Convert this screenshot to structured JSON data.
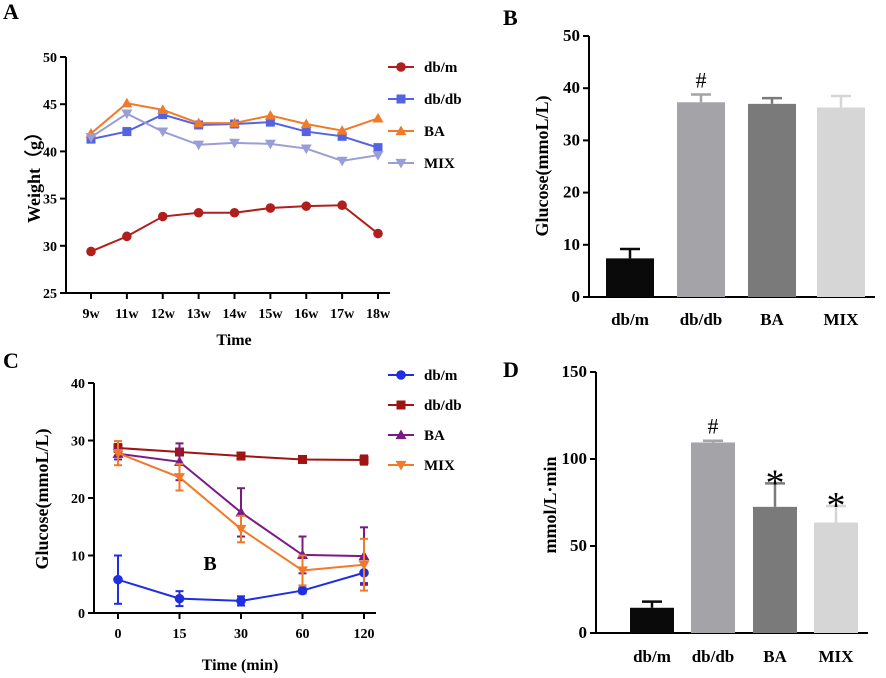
{
  "chart_data": [
    {
      "panel": "A",
      "type": "line",
      "xlabel": "Time",
      "ylabel": "Weight（g）",
      "ylim": [
        25,
        50
      ],
      "yticks": [
        25,
        30,
        35,
        40,
        45,
        50
      ],
      "categories": [
        "9w",
        "11w",
        "12w",
        "13w",
        "14w",
        "15w",
        "16w",
        "17w",
        "18w"
      ],
      "legend_position": "right",
      "series": [
        {
          "name": "db/m",
          "color": "#b01e1e",
          "marker": "circle",
          "values": [
            29.4,
            31.0,
            33.1,
            33.5,
            33.5,
            34.0,
            34.2,
            34.3,
            31.3
          ]
        },
        {
          "name": "db/db",
          "color": "#5463e3",
          "marker": "square",
          "values": [
            41.3,
            42.1,
            43.9,
            42.8,
            42.9,
            43.1,
            42.1,
            41.6,
            40.4
          ]
        },
        {
          "name": "BA",
          "color": "#f07a2a",
          "marker": "triangle-up",
          "values": [
            41.9,
            45.1,
            44.4,
            43.0,
            43.0,
            43.8,
            42.9,
            42.2,
            43.5
          ]
        },
        {
          "name": "MIX",
          "color": "#9a9ed6",
          "marker": "triangle-down",
          "values": [
            41.5,
            44.0,
            42.1,
            40.7,
            40.9,
            40.8,
            40.3,
            39.0,
            39.6
          ]
        }
      ]
    },
    {
      "panel": "B",
      "type": "bar",
      "ylabel": "Glucose(mmoL/L)",
      "ylim": [
        0,
        50
      ],
      "yticks": [
        0,
        10,
        20,
        30,
        40,
        50
      ],
      "categories": [
        "db/m",
        "db/db",
        "BA",
        "MIX"
      ],
      "values": [
        7.4,
        37.3,
        37.0,
        36.3
      ],
      "errors": [
        1.8,
        1.5,
        1.1,
        2.2
      ],
      "colors": [
        "#0a0a0a",
        "#a3a3a8",
        "#7a7a7a",
        "#d6d6d6"
      ],
      "annotations": [
        "",
        "#",
        "",
        ""
      ]
    },
    {
      "panel": "C",
      "type": "line",
      "xlabel": "Time (min)",
      "ylabel": "Glucose(mmoL/L)",
      "ylim": [
        0,
        40
      ],
      "yticks": [
        0,
        10,
        20,
        30,
        40
      ],
      "categories": [
        "0",
        "15",
        "30",
        "60",
        "120"
      ],
      "legend_position": "right",
      "inset_label": "B",
      "series": [
        {
          "name": "db/m",
          "color": "#1f2fe0",
          "marker": "circle",
          "values": [
            5.8,
            2.5,
            2.1,
            3.9,
            7.0
          ],
          "errors": [
            4.2,
            1.3,
            0.8,
            0.5,
            1.8
          ]
        },
        {
          "name": "db/db",
          "color": "#a11414",
          "marker": "square",
          "values": [
            28.7,
            28.0,
            27.3,
            26.7,
            26.6
          ],
          "errors": [
            0.7,
            0.6,
            0.5,
            0.5,
            0.8
          ]
        },
        {
          "name": "BA",
          "color": "#7a1a84",
          "marker": "triangle-up",
          "values": [
            27.7,
            26.3,
            17.5,
            10.1,
            9.9
          ],
          "errors": [
            1.0,
            3.2,
            4.2,
            3.2,
            5.0
          ]
        },
        {
          "name": "MIX",
          "color": "#f07a2a",
          "marker": "triangle-down",
          "values": [
            27.8,
            23.6,
            14.6,
            7.4,
            8.4
          ],
          "errors": [
            2.1,
            2.3,
            2.3,
            2.6,
            4.5
          ]
        }
      ]
    },
    {
      "panel": "D",
      "type": "bar",
      "ylabel": "mmol/L·min",
      "ylim": [
        0,
        150
      ],
      "yticks": [
        0,
        50,
        100,
        150
      ],
      "categories": [
        "db/m",
        "db/db",
        "BA",
        "MIX"
      ],
      "values": [
        14.5,
        109.5,
        72.5,
        63.5
      ],
      "errors": [
        3.5,
        1.0,
        13.5,
        9.5
      ],
      "colors": [
        "#0a0a0a",
        "#a3a3a8",
        "#7a7a7a",
        "#d6d6d6"
      ],
      "annotations": [
        "",
        "#",
        "*",
        "*"
      ]
    }
  ]
}
